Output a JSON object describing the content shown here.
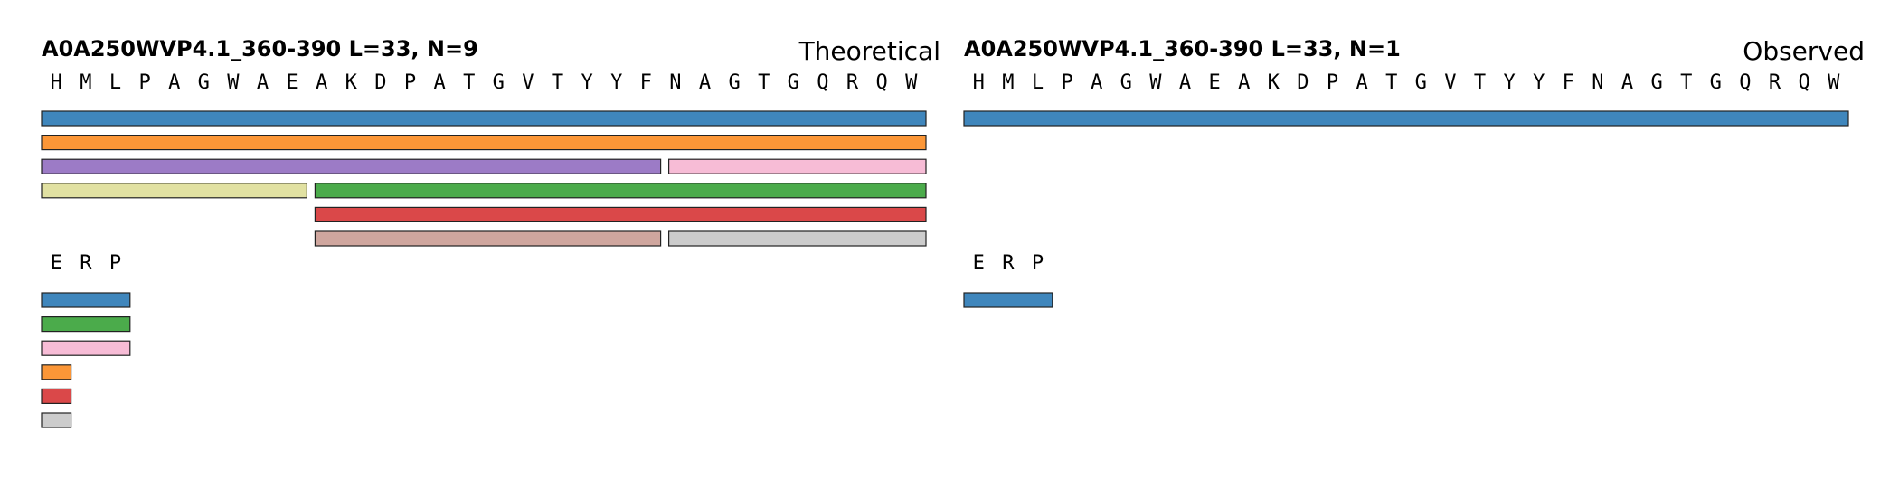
{
  "panels": [
    {
      "id": "theoretical",
      "title": "A0A250WVP4.1_360-390  L=33, N=9",
      "tag": "Theoretical",
      "sequence": [
        "H",
        "M",
        "L",
        "P",
        "A",
        "G",
        "W",
        "A",
        "E",
        "A",
        "K",
        "D",
        "P",
        "A",
        "T",
        "G",
        "V",
        "T",
        "Y",
        "Y",
        "F",
        "N",
        "A",
        "G",
        "T",
        "G",
        "Q",
        "R",
        "Q",
        "W"
      ],
      "peptides": [
        {
          "row": 0,
          "start": 1,
          "end": 30,
          "color": "#3f86bc"
        },
        {
          "row": 1,
          "start": 1,
          "end": 30,
          "color": "#fb9637"
        },
        {
          "row": 2,
          "start": 1,
          "end": 21,
          "color": "#9c7bc6"
        },
        {
          "row": 2,
          "start": 22,
          "end": 30,
          "color": "#f7bcd6"
        },
        {
          "row": 3,
          "start": 1,
          "end": 9,
          "color": "#e1e1a2"
        },
        {
          "row": 3,
          "start": 10,
          "end": 30,
          "color": "#4bab4b"
        },
        {
          "row": 4,
          "start": 10,
          "end": 30,
          "color": "#da4849"
        },
        {
          "row": 5,
          "start": 10,
          "end": 21,
          "color": "#cfa69e"
        },
        {
          "row": 5,
          "start": 22,
          "end": 30,
          "color": "#cccccc"
        }
      ],
      "erp_label": [
        "E",
        "R",
        "P"
      ],
      "legend": [
        {
          "span": 3,
          "color": "#3f86bc"
        },
        {
          "span": 3,
          "color": "#4bab4b"
        },
        {
          "span": 3,
          "color": "#f7bcd6"
        },
        {
          "span": 1,
          "color": "#fb9637"
        },
        {
          "span": 1,
          "color": "#da4849"
        },
        {
          "span": 1,
          "color": "#cccccc"
        }
      ]
    },
    {
      "id": "observed",
      "title": "A0A250WVP4.1_360-390  L=33, N=1",
      "tag": "Observed",
      "sequence": [
        "H",
        "M",
        "L",
        "P",
        "A",
        "G",
        "W",
        "A",
        "E",
        "A",
        "K",
        "D",
        "P",
        "A",
        "T",
        "G",
        "V",
        "T",
        "Y",
        "Y",
        "F",
        "N",
        "A",
        "G",
        "T",
        "G",
        "Q",
        "R",
        "Q",
        "W"
      ],
      "peptides": [
        {
          "row": 0,
          "start": 1,
          "end": 30,
          "color": "#3f86bc"
        }
      ],
      "erp_label": [
        "E",
        "R",
        "P"
      ],
      "legend": [
        {
          "span": 3,
          "color": "#3f86bc"
        }
      ]
    }
  ]
}
